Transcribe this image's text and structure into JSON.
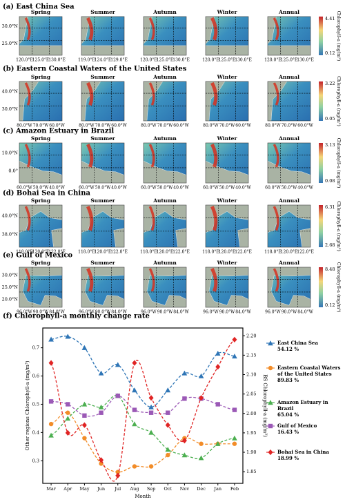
{
  "seasons": [
    "Spring",
    "Summer",
    "Autumn",
    "Winter",
    "Annual"
  ],
  "cbar_label": "Chlorophyll-a (mg/m³)",
  "panels": [
    {
      "title": "(a) East China Sea",
      "yticks": [
        "30.0°N",
        "25.0°N"
      ],
      "xticks": [
        [
          "120.0°E",
          "125.0°E",
          "130.0°E"
        ],
        [
          "119.0°E",
          "124.0°E",
          "129.0°E"
        ],
        [
          "120.0°E",
          "125.0°E",
          "130.0°E"
        ],
        [
          "120.0°E",
          "125.0°E",
          "130.0°E"
        ],
        [
          "120.0°E",
          "125.0°E",
          "130.0°E"
        ]
      ],
      "cbar_max": 4.41,
      "cbar_min": 0.12
    },
    {
      "title": "(b) Eastern Coastal Waters of the United States",
      "yticks": [
        "40.0°N",
        "30.0°N"
      ],
      "xticks": [
        [
          "80.0°W",
          "70.0°W",
          "60.0°W"
        ],
        [
          "80.0°W",
          "70.0°W",
          "60.0°W"
        ],
        [
          "80.0°W",
          "70.0°W",
          "60.0°W"
        ],
        [
          "80.0°W",
          "70.0°W",
          "60.0°W"
        ],
        [
          "80.0°W",
          "70.0°W",
          "60.0°W"
        ]
      ],
      "cbar_max": 3.22,
      "cbar_min": 0.05
    },
    {
      "title": "(c) Amazon Estuary in Brazil",
      "yticks": [
        "10.0°N",
        "0.0°"
      ],
      "xticks": [
        [
          "60.0°W",
          "50.0°W",
          "40.0°W"
        ],
        [
          "60.0°W",
          "50.0°W",
          "40.0°W"
        ],
        [
          "60.0°W",
          "50.0°W",
          "40.0°W"
        ],
        [
          "60.0°W",
          "50.0°W",
          "40.0°W"
        ],
        [
          "60.0°W",
          "50.0°W",
          "40.0°W"
        ]
      ],
      "cbar_max": 3.13,
      "cbar_min": 0.08
    },
    {
      "title": "(d) Bohai Sea in China",
      "yticks": [
        "40.0°N",
        "38.0°N"
      ],
      "xticks": [
        [
          "118.0°E",
          "120.0°E",
          "122.0°E"
        ],
        [
          "118.0°E",
          "120.0°E",
          "122.0°E"
        ],
        [
          "118.0°E",
          "120.0°E",
          "122.0°E"
        ],
        [
          "118.0°E",
          "120.0°E",
          "122.0°E"
        ],
        [
          "118.0°E",
          "120.0°E",
          "122.0°E"
        ]
      ],
      "cbar_max": 6.31,
      "cbar_min": 2.68
    },
    {
      "title": "(e) Gulf of Mexico",
      "yticks": [
        "30.0°N",
        "25.0°N",
        "20.0°N"
      ],
      "xticks": [
        [
          "96.0°W",
          "90.0°W",
          "84.0°W"
        ],
        [
          "96.0°W",
          "90.0°W",
          "84.0°W"
        ],
        [
          "96.0°W",
          "90.0°W",
          "84.0°W"
        ],
        [
          "96.0°W",
          "90.0°W",
          "84.0°W"
        ],
        [
          "96.0°W",
          "90.0°W",
          "84.0°W"
        ]
      ],
      "cbar_max": 8.48,
      "cbar_min": 0.12
    }
  ],
  "chart_data": {
    "type": "line",
    "title": "(f) Chlorophyll-a monthly change rate",
    "x_label": "Month",
    "y_label": "Other regions Chlorophyll-a (mg/m³)",
    "y2_label": "BS Chlorophyll-a (mg/m³)",
    "categories": [
      "Mar",
      "Apr",
      "May",
      "Jun",
      "Jul",
      "Aug",
      "Sep",
      "Oct",
      "Nov",
      "Dec",
      "Jan",
      "Feb"
    ],
    "ylim": [
      0.22,
      0.77
    ],
    "yticks": [
      0.3,
      0.4,
      0.5,
      0.6,
      0.7
    ],
    "y2lim": [
      1.82,
      2.22
    ],
    "y2ticks": [
      1.85,
      {
        "value": 1.9,
        "label": "1.90"
      },
      1.95,
      {
        "value": 2.0,
        "label": "2.00"
      },
      2.05,
      {
        "value": 2.1,
        "label": "2.10"
      },
      2.15,
      {
        "value": 2.2,
        "label": "2.20"
      }
    ],
    "series": [
      {
        "name": "East China Sea",
        "rate": "54.12 %",
        "color": "#2e75b6",
        "marker": "triangle",
        "values": [
          0.73,
          0.74,
          0.7,
          0.61,
          0.64,
          0.55,
          0.49,
          0.55,
          0.61,
          0.6,
          0.68,
          0.67
        ]
      },
      {
        "name": "Eastern Coastal Waters of the United States",
        "rate": "89.83 %",
        "color": "#f28c28",
        "marker": "circle",
        "values": [
          0.43,
          0.47,
          0.38,
          0.29,
          0.26,
          0.28,
          0.28,
          0.32,
          0.38,
          0.36,
          0.36,
          0.36
        ]
      },
      {
        "name": "Amazon Estuary in Brazil",
        "rate": "65.04 %",
        "color": "#4caf50",
        "marker": "tri",
        "values": [
          0.39,
          0.45,
          0.5,
          0.49,
          0.53,
          0.43,
          0.4,
          0.34,
          0.32,
          0.31,
          0.36,
          0.38
        ]
      },
      {
        "name": "Gulf of Mexico",
        "rate": "16.43 %",
        "color": "#9b59b6",
        "marker": "square",
        "values": [
          0.51,
          0.5,
          0.46,
          0.47,
          0.53,
          0.48,
          0.47,
          0.47,
          0.52,
          0.52,
          0.5,
          0.48
        ]
      },
      {
        "name": "Bohai Sea in China",
        "rate": "18.99 %",
        "color": "#e02424",
        "marker": "diamond",
        "axis": "y2",
        "values": [
          2.13,
          1.95,
          1.97,
          1.88,
          1.84,
          2.13,
          2.04,
          1.97,
          1.93,
          2.04,
          2.12,
          2.19
        ]
      }
    ]
  }
}
